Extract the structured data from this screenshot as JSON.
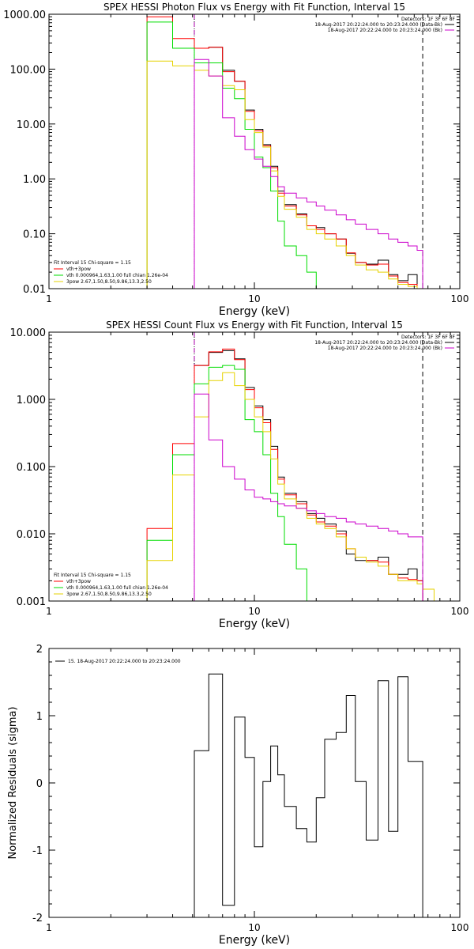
{
  "chart_data": [
    {
      "type": "line",
      "title": "SPEX HESSI Photon Flux vs Energy with Fit Function, Interval 15",
      "xlabel": "Energy (keV)",
      "ylabel": "",
      "xscale": "log",
      "yscale": "log",
      "xlim": [
        1,
        100
      ],
      "ylim": [
        0.01,
        1000
      ],
      "x_tick_labels": [
        "1",
        "10",
        "100"
      ],
      "y_tick_labels": [
        "0.01",
        "0.10",
        "1.00",
        "10.00",
        "100.00",
        "1000.00"
      ],
      "legend_top_right": [
        "Detectors: 1F 3F 6F 8F",
        "18-Aug-2017 20:22:24.000 to 20:23:24.000 (Data-Bk)",
        "18-Aug-2017 20:22:24.000 to 20:23:24.000 (Bk)"
      ],
      "legend_bottom_left": [
        "Fit Interval 15   Chi-square = 1.15",
        "vth+3pow",
        "vth 0.000964,1.63,1.00  full chian 1.26e-04",
        "3pow 2.67,1.50,8.50,9.86,13.3,2.50"
      ],
      "vlines": [
        {
          "x": 5.1,
          "style": "dotted",
          "color": "#000000"
        },
        {
          "x": 5.1,
          "style": "dashed",
          "color": "#aa00aa"
        },
        {
          "x": 66,
          "style": "dashed",
          "color": "#000000"
        }
      ],
      "bin_edges": [
        3,
        4,
        5.1,
        6,
        7,
        8,
        9,
        10,
        11,
        12,
        13,
        14,
        16,
        18,
        20,
        22,
        25,
        28,
        31,
        35,
        40,
        45,
        50,
        56,
        62,
        66
      ],
      "series": [
        {
          "color": "#000000",
          "values": [
            null,
            null,
            240,
            250,
            95,
            60,
            18,
            8,
            4.2,
            1.7,
            0.6,
            0.34,
            0.23,
            0.14,
            0.13,
            0.1,
            0.08,
            0.044,
            0.03,
            0.028,
            0.033,
            0.018,
            0.014,
            0.018,
            0.01
          ]
        },
        {
          "color": "#ff0000",
          "values": [
            900,
            360,
            240,
            250,
            90,
            60,
            17,
            7.5,
            4,
            1.6,
            0.55,
            0.32,
            0.22,
            0.14,
            0.12,
            0.1,
            0.08,
            0.045,
            0.03,
            0.027,
            0.028,
            0.017,
            0.013,
            0.012,
            null
          ]
        },
        {
          "color": "#00dd00",
          "values": [
            720,
            240,
            130,
            130,
            45,
            29,
            8,
            2.5,
            1.6,
            0.6,
            0.17,
            0.06,
            0.04,
            0.02,
            0.01,
            null,
            null,
            null,
            null,
            null,
            null,
            null,
            null,
            null,
            null
          ]
        },
        {
          "color": "#e6d200",
          "values": [
            140,
            115,
            95,
            75,
            50,
            42,
            12,
            7,
            3.8,
            1.4,
            0.48,
            0.28,
            0.2,
            0.12,
            0.1,
            0.08,
            0.06,
            0.04,
            0.027,
            0.022,
            0.02,
            0.015,
            0.012,
            0.011,
            null
          ]
        },
        {
          "color": "#cc00cc",
          "values": [
            null,
            null,
            150,
            75,
            13,
            6,
            3.4,
            2.3,
            1.7,
            1.1,
            0.72,
            0.55,
            0.45,
            0.38,
            0.32,
            0.27,
            0.22,
            0.18,
            0.15,
            0.12,
            0.1,
            0.08,
            0.07,
            0.06,
            0.05
          ]
        }
      ]
    },
    {
      "type": "line",
      "title": "SPEX HESSI Count Flux vs Energy with Fit Function, Interval 15",
      "xlabel": "Energy (keV)",
      "ylabel": "",
      "xscale": "log",
      "yscale": "log",
      "xlim": [
        1,
        100
      ],
      "ylim": [
        0.001,
        10
      ],
      "x_tick_labels": [
        "1",
        "10",
        "100"
      ],
      "y_tick_labels": [
        "0.001",
        "0.010",
        "0.100",
        "1.000",
        "10.000"
      ],
      "legend_top_right": [
        "Detectors: 1F 3F 6F 8F",
        "18-Aug-2017 20:22:24.000 to 20:23:24.000 (Data-Bk)",
        "18-Aug-2017 20:22:24.000 to 20:23:24.000 (Bk)"
      ],
      "legend_bottom_left": [
        "Fit Interval 15   Chi-square = 1.15",
        "vth+3pow",
        "vth 0.000964,1.63,1.00  full chian 1.26e-04",
        "3pow 2.67,1.50,8.50,9.86,13.3,2.50"
      ],
      "vlines": [
        {
          "x": 5.1,
          "style": "dotted",
          "color": "#000000"
        },
        {
          "x": 5.1,
          "style": "dashed",
          "color": "#aa00aa"
        },
        {
          "x": 66,
          "style": "dashed",
          "color": "#000000"
        }
      ],
      "bin_edges": [
        3,
        4,
        5.1,
        6,
        7,
        8,
        9,
        10,
        11,
        12,
        13,
        14,
        16,
        18,
        20,
        22,
        25,
        28,
        31,
        35,
        40,
        45,
        50,
        56,
        62,
        66,
        75,
        85
      ],
      "series": [
        {
          "color": "#000000",
          "values": [
            null,
            null,
            3.2,
            5,
            5.3,
            4,
            1.5,
            0.8,
            0.5,
            0.2,
            0.07,
            0.04,
            0.03,
            0.02,
            0.017,
            0.014,
            0.011,
            0.005,
            0.004,
            0.004,
            0.0045,
            0.0025,
            0.0025,
            0.003,
            0.002,
            null,
            null
          ]
        },
        {
          "color": "#ff0000",
          "values": [
            0.012,
            0.22,
            3.2,
            5.1,
            5.6,
            3.9,
            1.4,
            0.75,
            0.45,
            0.18,
            0.065,
            0.038,
            0.028,
            0.019,
            0.015,
            0.013,
            0.01,
            0.006,
            0.0045,
            0.004,
            0.0038,
            0.0025,
            0.0022,
            0.0021,
            0.002,
            null,
            null
          ]
        },
        {
          "color": "#00dd00",
          "values": [
            0.008,
            0.15,
            1.7,
            3,
            3.2,
            2.8,
            0.5,
            0.33,
            0.15,
            0.04,
            0.018,
            0.007,
            0.003,
            0.001,
            null,
            null,
            null,
            null,
            null,
            null,
            null,
            null,
            null,
            null,
            null,
            null,
            null
          ]
        },
        {
          "color": "#e6d200",
          "values": [
            0.004,
            0.075,
            0.55,
            1.9,
            2.5,
            1.6,
            1,
            0.55,
            0.33,
            0.13,
            0.055,
            0.033,
            0.024,
            0.017,
            0.014,
            0.012,
            0.009,
            0.006,
            0.0045,
            0.0038,
            0.0033,
            0.0025,
            0.002,
            0.002,
            0.0018,
            0.0015,
            0.001
          ]
        },
        {
          "color": "#cc00cc",
          "values": [
            null,
            null,
            1.2,
            0.25,
            0.1,
            0.065,
            0.045,
            0.035,
            0.033,
            0.03,
            0.028,
            0.026,
            0.024,
            0.022,
            0.02,
            0.018,
            0.017,
            0.015,
            0.014,
            0.013,
            0.012,
            0.011,
            0.01,
            0.009,
            0.009,
            null,
            null
          ]
        }
      ]
    },
    {
      "type": "line",
      "title": "",
      "xlabel": "Energy (keV)",
      "ylabel": "Normalized Residuals (sigma)",
      "xscale": "log",
      "yscale": "linear",
      "xlim": [
        1,
        100
      ],
      "ylim": [
        -2,
        2
      ],
      "x_tick_labels": [
        "1",
        "10",
        "100"
      ],
      "y_tick_labels": [
        "-2",
        "-1",
        "0",
        "1",
        "2"
      ],
      "legend_top_left": [
        "15. 18-Aug-2017 20:22:24.000 to 20:23:24.000"
      ],
      "bin_edges": [
        5.1,
        6,
        7,
        8,
        9,
        10,
        11,
        12,
        13,
        14,
        16,
        18,
        20,
        22,
        25,
        28,
        31,
        35,
        40,
        45,
        50,
        56,
        62,
        66
      ],
      "series": [
        {
          "color": "#000000",
          "values": [
            0.48,
            1.62,
            -1.82,
            0.98,
            0.38,
            -0.95,
            0.02,
            0.55,
            0.12,
            -0.35,
            -0.68,
            -0.88,
            -0.22,
            0.65,
            0.75,
            1.3,
            0.02,
            -0.85,
            1.52,
            -0.72,
            1.58,
            0.32,
            0.32
          ]
        }
      ]
    }
  ]
}
